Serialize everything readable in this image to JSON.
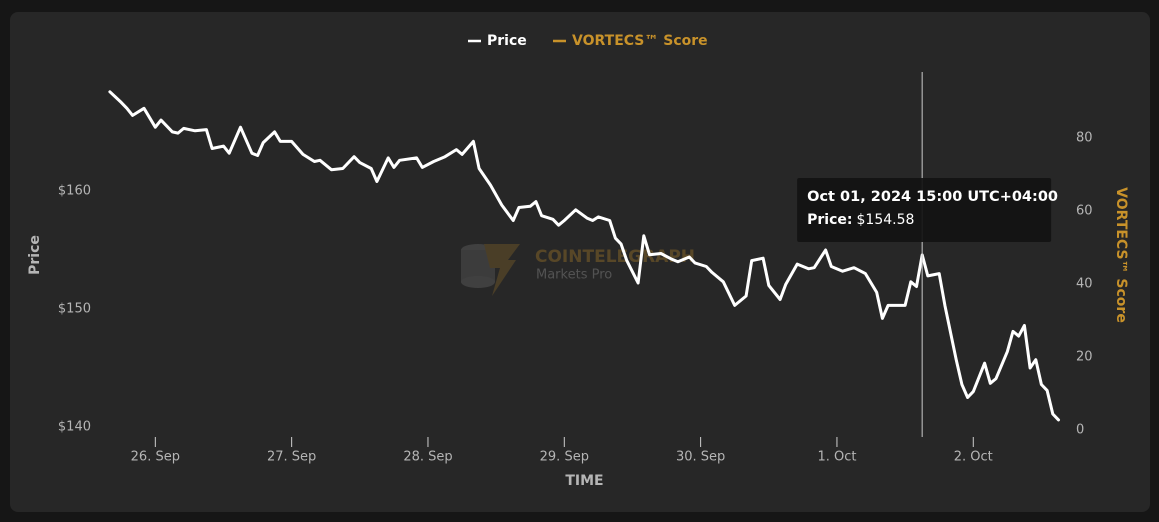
{
  "chart_data": {
    "type": "line",
    "legend": "top",
    "legend_entries": [
      "Price",
      "VORTECS™ Score"
    ],
    "xlabel": "TIME",
    "ylabel": "Price",
    "y2label": "VORTECS™ Score",
    "watermark": {
      "title": "COINTELEGRAPH",
      "subtitle": "Markets Pro"
    },
    "x": [
      -8,
      -6,
      -5,
      -4,
      -2,
      0,
      1,
      3,
      4,
      5,
      7,
      9,
      10,
      12,
      13,
      15,
      17,
      18,
      19,
      21,
      22,
      24,
      26,
      28,
      29,
      31,
      33,
      35,
      36,
      38,
      39,
      41,
      42,
      43,
      46,
      47,
      49,
      51,
      53,
      54,
      56,
      57,
      59,
      61,
      63,
      64,
      66,
      67,
      68,
      70,
      71,
      72,
      74,
      76,
      77,
      78,
      80,
      81,
      82,
      83,
      85,
      86,
      87,
      89,
      91,
      92,
      94,
      95,
      97,
      98,
      100,
      102,
      104,
      105,
      107,
      108,
      110,
      111,
      113,
      115,
      116,
      118,
      119,
      121,
      123,
      125,
      127,
      128,
      129,
      132,
      133,
      134,
      135,
      136,
      138,
      139,
      141,
      142,
      143,
      144,
      146,
      147,
      148,
      150,
      151,
      152,
      153,
      154,
      155,
      156,
      157,
      158,
      159
    ],
    "series": [
      {
        "name": "Price",
        "color": "#ffffff",
        "values": [
          168.4,
          167.5,
          167.0,
          166.4,
          167.0,
          165.4,
          166.0,
          165.0,
          164.9,
          165.3,
          165.1,
          165.2,
          163.6,
          163.8,
          163.2,
          165.4,
          163.2,
          163.0,
          164.1,
          165.0,
          164.2,
          164.2,
          163.1,
          162.5,
          162.6,
          161.8,
          161.9,
          162.9,
          162.4,
          161.9,
          160.8,
          162.8,
          162.0,
          162.6,
          162.8,
          162.0,
          162.5,
          162.9,
          163.5,
          163.1,
          164.2,
          161.9,
          160.5,
          158.8,
          157.5,
          158.6,
          158.7,
          159.1,
          157.9,
          157.6,
          157.1,
          157.5,
          158.4,
          157.7,
          157.5,
          157.8,
          157.5,
          156.0,
          155.5,
          154.1,
          152.2,
          156.2,
          154.6,
          154.7,
          154.2,
          154.0,
          154.4,
          153.9,
          153.6,
          153.1,
          152.3,
          150.3,
          151.1,
          154.1,
          154.3,
          152.0,
          150.8,
          152.1,
          153.8,
          153.4,
          153.5,
          155.0,
          153.6,
          153.2,
          153.5,
          153.0,
          151.4,
          149.2,
          150.3,
          150.3,
          152.3,
          151.9,
          154.58,
          152.8,
          153.0,
          150.3,
          145.7,
          143.6,
          142.5,
          143.0,
          145.4,
          143.7,
          144.1,
          146.4,
          148.1,
          147.7,
          148.6,
          145.0,
          145.7,
          143.6,
          143.1,
          141.1,
          140.6
        ]
      },
      {
        "name": "VORTECS™ Score",
        "color": "#c8922a",
        "axis": "y2"
      }
    ],
    "xlim": [
      -11.5,
      160.5
    ],
    "xticks": [
      {
        "value": 0,
        "label": "26. Sep"
      },
      {
        "value": 24,
        "label": "27. Sep"
      },
      {
        "value": 48,
        "label": "28. Sep"
      },
      {
        "value": 72,
        "label": "29. Sep"
      },
      {
        "value": 96,
        "label": "30. Sep"
      },
      {
        "value": 120,
        "label": "1. Oct"
      },
      {
        "value": 144,
        "label": "2. Oct"
      }
    ],
    "ylim": [
      139.15,
      170.08
    ],
    "yticks": [
      {
        "value": 140,
        "label": "$140"
      },
      {
        "value": 150,
        "label": "$150"
      },
      {
        "value": 160,
        "label": "$160"
      }
    ],
    "y2lim": [
      -1.9,
      98.1
    ],
    "y2ticks": [
      0,
      20,
      40,
      60,
      80
    ],
    "tooltip": {
      "title": "Oct 01, 2024 15:00 UTC+04:00",
      "label": "Price:",
      "value_label": "$154.58"
    }
  }
}
